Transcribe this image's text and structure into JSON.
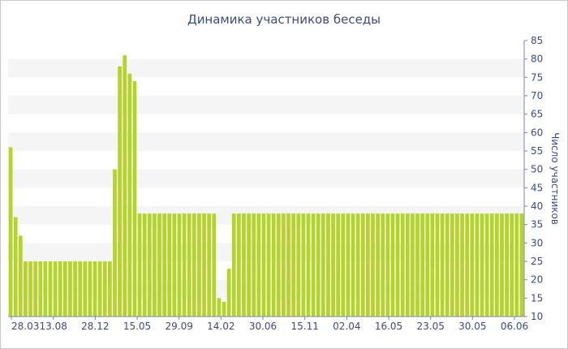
{
  "chart_data": {
    "type": "bar",
    "title": "Динамика участников беседы",
    "xlabel": "",
    "ylabel": "Число участников",
    "ylim": [
      10,
      85
    ],
    "yticks": [
      10,
      15,
      20,
      25,
      30,
      35,
      40,
      45,
      50,
      55,
      60,
      65,
      70,
      75,
      80,
      85
    ],
    "y_axis_side": "right",
    "grid": "alternating horizontal bands",
    "legend": "none",
    "x_tick_labels": [
      "28.03",
      "13.08",
      "28.12",
      "15.05",
      "29.09",
      "14.02",
      "30.06",
      "15.11",
      "02.04",
      "16.05",
      "23.05",
      "30.05",
      "06.06"
    ],
    "values": [
      56,
      37,
      32,
      25,
      25,
      25,
      25,
      25,
      25,
      25,
      25,
      25,
      25,
      25,
      25,
      25,
      25,
      25,
      25,
      25,
      25,
      50,
      78,
      81,
      76,
      74,
      38,
      38,
      38,
      38,
      38,
      38,
      38,
      38,
      38,
      38,
      38,
      38,
      38,
      38,
      38,
      38,
      15,
      14,
      23,
      38,
      38,
      38,
      38,
      38,
      38,
      38,
      38,
      38,
      38,
      38,
      38,
      38,
      38,
      38,
      38,
      38,
      38,
      38,
      38,
      38,
      38,
      38,
      38,
      38,
      38,
      38,
      38,
      38,
      38,
      38,
      38,
      38,
      38,
      38,
      38,
      38,
      38,
      38,
      38,
      38,
      38,
      38,
      38,
      38,
      38,
      38,
      38,
      38,
      38,
      38,
      38,
      38,
      38,
      38,
      38,
      38,
      38,
      38
    ],
    "colors": {
      "bar": "#b5d42a",
      "band": "#f5f5f5",
      "axis": "#7a86b8",
      "text": "#3a4a86"
    }
  }
}
